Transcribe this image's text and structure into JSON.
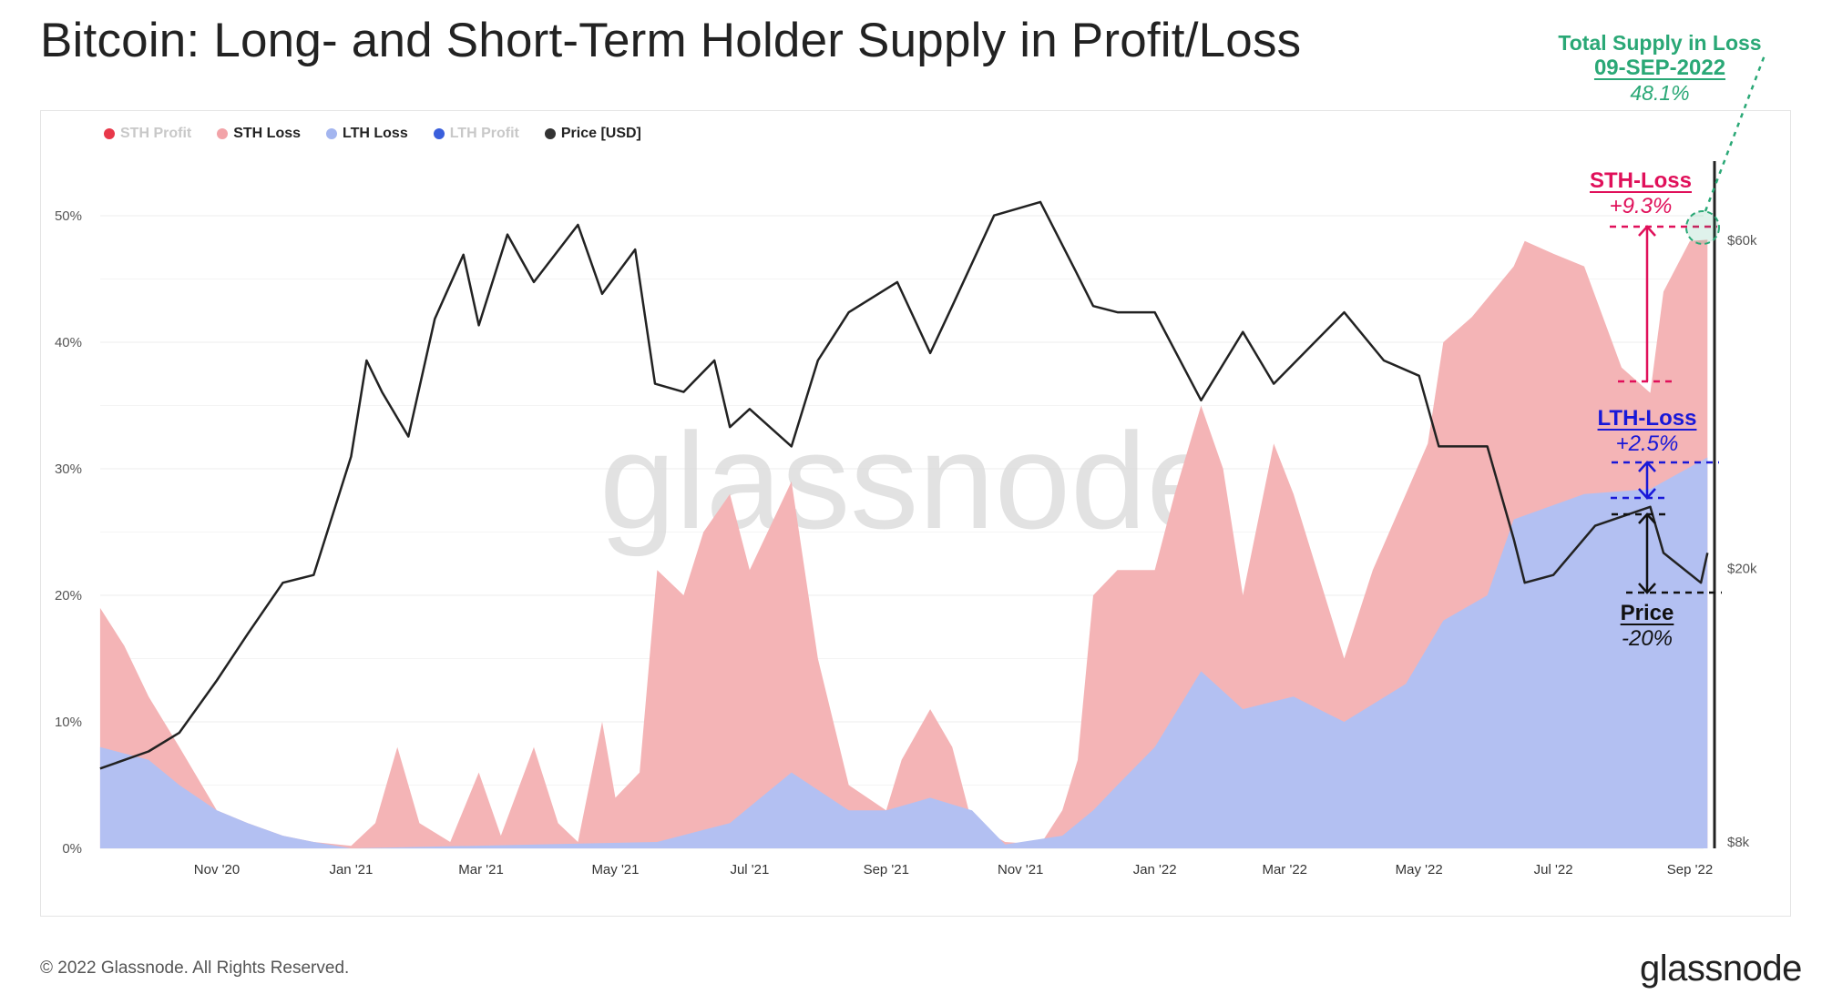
{
  "chart_data": {
    "type": "area",
    "title": "Bitcoin: Long- and Short-Term Holder Supply in Profit/Loss",
    "legend": [
      {
        "name": "STH Profit",
        "color": "#e8384a",
        "active": false
      },
      {
        "name": "STH Loss",
        "color": "#f2a3a8",
        "active": true
      },
      {
        "name": "LTH Loss",
        "color": "#a3b5ef",
        "active": true
      },
      {
        "name": "LTH Profit",
        "color": "#3a5fdc",
        "active": false
      },
      {
        "name": "Price [USD]",
        "color": "#333333",
        "active": true
      }
    ],
    "legend_position": "top-left",
    "x_ticks": [
      "Nov '20",
      "Jan '21",
      "Mar '21",
      "May '21",
      "Jul '21",
      "Sep '21",
      "Nov '21",
      "Jan '22",
      "Mar '22",
      "May '22",
      "Jul '22",
      "Sep '22"
    ],
    "x_tick_dates": [
      "2020-11-01",
      "2021-01-01",
      "2021-03-01",
      "2021-05-01",
      "2021-07-01",
      "2021-09-01",
      "2021-11-01",
      "2022-01-01",
      "2022-03-01",
      "2022-05-01",
      "2022-07-01",
      "2022-09-01"
    ],
    "xlim": [
      "2020-09-09",
      "2022-09-09"
    ],
    "y_left": {
      "ticks": [
        "0%",
        "10%",
        "20%",
        "30%",
        "40%",
        "50%"
      ],
      "tick_values": [
        0,
        10,
        20,
        30,
        40,
        50
      ],
      "ylim": [
        0,
        55
      ],
      "unit": "%"
    },
    "y_right": {
      "ticks": [
        "$8k",
        "$20k",
        "$60k"
      ],
      "tick_values": [
        8000,
        20000,
        60000
      ],
      "scale": "log"
    },
    "grid": true,
    "series": [
      {
        "name": "Total Supply in Loss (STH Loss stacked on LTH Loss)",
        "color": "#f4b4b6",
        "axis": "left",
        "points": [
          [
            "2020-09-09",
            19
          ],
          [
            "2020-09-20",
            16
          ],
          [
            "2020-10-01",
            12
          ],
          [
            "2020-10-15",
            8
          ],
          [
            "2020-11-01",
            3
          ],
          [
            "2020-11-15",
            2
          ],
          [
            "2020-12-01",
            1
          ],
          [
            "2020-12-15",
            0.5
          ],
          [
            "2021-01-01",
            0.2
          ],
          [
            "2021-01-12",
            2
          ],
          [
            "2021-01-22",
            8
          ],
          [
            "2021-02-01",
            2
          ],
          [
            "2021-02-15",
            0.5
          ],
          [
            "2021-02-28",
            6
          ],
          [
            "2021-03-10",
            1
          ],
          [
            "2021-03-25",
            8
          ],
          [
            "2021-04-05",
            2
          ],
          [
            "2021-04-14",
            0.5
          ],
          [
            "2021-04-25",
            10
          ],
          [
            "2021-05-01",
            4
          ],
          [
            "2021-05-12",
            6
          ],
          [
            "2021-05-20",
            22
          ],
          [
            "2021-06-01",
            20
          ],
          [
            "2021-06-10",
            25
          ],
          [
            "2021-06-22",
            28
          ],
          [
            "2021-07-01",
            22
          ],
          [
            "2021-07-20",
            29
          ],
          [
            "2021-08-01",
            15
          ],
          [
            "2021-08-15",
            5
          ],
          [
            "2021-09-01",
            3
          ],
          [
            "2021-09-08",
            7
          ],
          [
            "2021-09-21",
            11
          ],
          [
            "2021-10-01",
            8
          ],
          [
            "2021-10-10",
            2
          ],
          [
            "2021-10-25",
            0.5
          ],
          [
            "2021-11-10",
            0.3
          ],
          [
            "2021-11-20",
            3
          ],
          [
            "2021-11-27",
            7
          ],
          [
            "2021-12-04",
            20
          ],
          [
            "2021-12-15",
            22
          ],
          [
            "2022-01-01",
            22
          ],
          [
            "2022-01-10",
            28
          ],
          [
            "2022-01-22",
            35
          ],
          [
            "2022-02-01",
            30
          ],
          [
            "2022-02-10",
            20
          ],
          [
            "2022-02-24",
            32
          ],
          [
            "2022-03-05",
            28
          ],
          [
            "2022-03-28",
            15
          ],
          [
            "2022-04-10",
            22
          ],
          [
            "2022-04-25",
            28
          ],
          [
            "2022-05-05",
            32
          ],
          [
            "2022-05-12",
            40
          ],
          [
            "2022-05-25",
            42
          ],
          [
            "2022-06-13",
            46
          ],
          [
            "2022-06-18",
            48
          ],
          [
            "2022-07-01",
            47
          ],
          [
            "2022-07-15",
            46
          ],
          [
            "2022-08-01",
            38
          ],
          [
            "2022-08-14",
            36
          ],
          [
            "2022-08-20",
            44
          ],
          [
            "2022-09-01",
            48
          ],
          [
            "2022-09-09",
            48.1
          ]
        ]
      },
      {
        "name": "LTH Loss",
        "color": "#b3c0f2",
        "axis": "left",
        "points": [
          [
            "2020-09-09",
            8
          ],
          [
            "2020-10-01",
            7
          ],
          [
            "2020-10-15",
            5
          ],
          [
            "2020-11-01",
            3
          ],
          [
            "2020-11-15",
            2
          ],
          [
            "2020-12-01",
            1
          ],
          [
            "2020-12-15",
            0.5
          ],
          [
            "2021-01-01",
            0
          ],
          [
            "2021-05-20",
            0.5
          ],
          [
            "2021-06-22",
            2
          ],
          [
            "2021-07-20",
            6
          ],
          [
            "2021-08-15",
            3
          ],
          [
            "2021-09-01",
            3
          ],
          [
            "2021-09-21",
            4
          ],
          [
            "2021-10-10",
            3
          ],
          [
            "2021-10-25",
            0.3
          ],
          [
            "2021-11-20",
            1
          ],
          [
            "2021-12-04",
            3
          ],
          [
            "2021-12-15",
            5
          ],
          [
            "2022-01-01",
            8
          ],
          [
            "2022-01-22",
            14
          ],
          [
            "2022-02-10",
            11
          ],
          [
            "2022-03-05",
            12
          ],
          [
            "2022-03-28",
            10
          ],
          [
            "2022-04-25",
            13
          ],
          [
            "2022-05-12",
            18
          ],
          [
            "2022-06-01",
            20
          ],
          [
            "2022-06-13",
            26
          ],
          [
            "2022-07-15",
            28
          ],
          [
            "2022-08-14",
            28.4
          ],
          [
            "2022-09-09",
            30.9
          ]
        ]
      },
      {
        "name": "Price [USD]",
        "color": "#222222",
        "axis": "right",
        "points": [
          [
            "2020-09-09",
            10200
          ],
          [
            "2020-10-01",
            10800
          ],
          [
            "2020-10-15",
            11500
          ],
          [
            "2020-11-01",
            13700
          ],
          [
            "2020-11-15",
            16000
          ],
          [
            "2020-12-01",
            19000
          ],
          [
            "2020-12-15",
            19500
          ],
          [
            "2021-01-01",
            29000
          ],
          [
            "2021-01-08",
            40000
          ],
          [
            "2021-01-15",
            36000
          ],
          [
            "2021-01-27",
            31000
          ],
          [
            "2021-02-08",
            46000
          ],
          [
            "2021-02-21",
            57000
          ],
          [
            "2021-02-28",
            45000
          ],
          [
            "2021-03-13",
            61000
          ],
          [
            "2021-03-25",
            52000
          ],
          [
            "2021-04-14",
            63000
          ],
          [
            "2021-04-25",
            50000
          ],
          [
            "2021-05-10",
            58000
          ],
          [
            "2021-05-19",
            37000
          ],
          [
            "2021-06-01",
            36000
          ],
          [
            "2021-06-15",
            40000
          ],
          [
            "2021-06-22",
            32000
          ],
          [
            "2021-07-01",
            34000
          ],
          [
            "2021-07-20",
            30000
          ],
          [
            "2021-08-01",
            40000
          ],
          [
            "2021-08-15",
            47000
          ],
          [
            "2021-09-06",
            52000
          ],
          [
            "2021-09-21",
            41000
          ],
          [
            "2021-10-01",
            48000
          ],
          [
            "2021-10-20",
            65000
          ],
          [
            "2021-11-10",
            68000
          ],
          [
            "2021-11-26",
            54000
          ],
          [
            "2021-12-04",
            48000
          ],
          [
            "2021-12-15",
            47000
          ],
          [
            "2022-01-01",
            47000
          ],
          [
            "2022-01-22",
            35000
          ],
          [
            "2022-02-10",
            44000
          ],
          [
            "2022-02-24",
            37000
          ],
          [
            "2022-03-28",
            47000
          ],
          [
            "2022-04-15",
            40000
          ],
          [
            "2022-05-01",
            38000
          ],
          [
            "2022-05-10",
            30000
          ],
          [
            "2022-06-01",
            30000
          ],
          [
            "2022-06-13",
            22000
          ],
          [
            "2022-06-18",
            19000
          ],
          [
            "2022-07-01",
            19500
          ],
          [
            "2022-07-20",
            23000
          ],
          [
            "2022-08-14",
            24500
          ],
          [
            "2022-08-20",
            21000
          ],
          [
            "2022-09-06",
            19000
          ],
          [
            "2022-09-09",
            21000
          ]
        ]
      }
    ],
    "annotations": {
      "total": {
        "title": "Total Supply in Loss",
        "date": "09-SEP-2022",
        "value": "48.1%",
        "color": "#2aa876"
      },
      "sth": {
        "title": "STH-Loss",
        "value": "+9.3%",
        "color": "#e0105a"
      },
      "lth": {
        "title": "LTH-Loss",
        "value": "+2.5%",
        "color": "#1818d8"
      },
      "price": {
        "title": "Price",
        "value": "-20%",
        "color": "#111111"
      }
    },
    "watermark": "glassnode"
  },
  "footer": {
    "copyright": "© 2022 Glassnode. All Rights Reserved.",
    "logo": "glassnode"
  }
}
